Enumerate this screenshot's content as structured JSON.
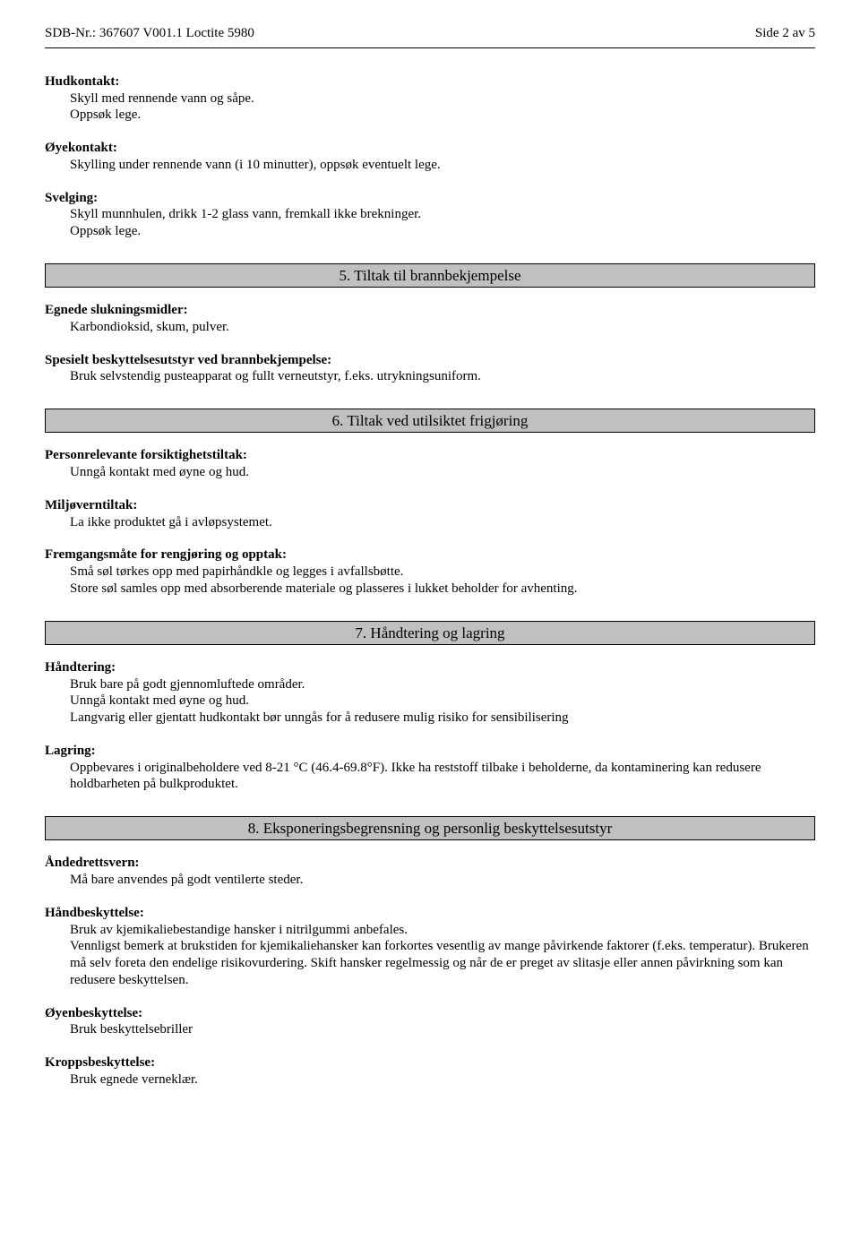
{
  "header": {
    "left": "SDB-Nr.: 367607  V001.1  Loctite 5980",
    "right": "Side 2 av 5"
  },
  "s_hud": {
    "label": "Hudkontakt:",
    "l1": "Skyll med rennende vann og såpe.",
    "l2": "Oppsøk lege."
  },
  "s_oye": {
    "label": "Øyekontakt:",
    "l1": "Skylling under rennende vann (i 10 minutter), oppsøk eventuelt lege."
  },
  "s_svelg": {
    "label": "Svelging:",
    "l1": "Skyll munnhulen, drikk 1-2 glass vann, fremkall ikke brekninger.",
    "l2": "Oppsøk lege."
  },
  "sec5": {
    "title": "5. Tiltak til brannbekjempelse",
    "a": {
      "label": "Egnede slukningsmidler:",
      "l1": "Karbondioksid, skum, pulver."
    },
    "b": {
      "label": "Spesielt beskyttelsesutstyr ved brannbekjempelse:",
      "l1": "Bruk selvstendig pusteapparat og fullt verneutstyr, f.eks. utrykningsuniform."
    }
  },
  "sec6": {
    "title": "6. Tiltak ved utilsiktet frigjøring",
    "a": {
      "label": "Personrelevante forsiktighetstiltak:",
      "l1": "Unngå kontakt med øyne og hud."
    },
    "b": {
      "label": "Miljøverntiltak:",
      "l1": "La ikke produktet gå i avløpsystemet."
    },
    "c": {
      "label": "Fremgangsmåte for rengjøring og opptak:",
      "l1": "Små søl tørkes opp med papirhåndkle og legges i avfallsbøtte.",
      "l2": "Store søl samles opp med absorberende materiale og plasseres i lukket beholder for avhenting."
    }
  },
  "sec7": {
    "title": "7. Håndtering og lagring",
    "a": {
      "label": "Håndtering:",
      "l1": "Bruk bare på godt gjennomluftede områder.",
      "l2": "Unngå kontakt med øyne og hud.",
      "l3": "Langvarig eller gjentatt hudkontakt bør unngås for å redusere mulig risiko for sensibilisering"
    },
    "b": {
      "label": "Lagring:",
      "l1": "Oppbevares i originalbeholdere ved 8-21 °C (46.4-69.8°F). Ikke ha reststoff tilbake i beholderne, da kontaminering kan redusere holdbarheten på bulkproduktet."
    }
  },
  "sec8": {
    "title": "8. Eksponeringsbegrensning og personlig beskyttelsesutstyr",
    "a": {
      "label": "Åndedrettsvern:",
      "l1": "Må bare anvendes på godt ventilerte steder."
    },
    "b": {
      "label": "Håndbeskyttelse:",
      "l1": "Bruk av kjemikaliebestandige hansker i nitrilgummi anbefales.",
      "l2": "Vennligst bemerk at brukstiden for kjemikaliehansker kan forkortes vesentlig av mange påvirkende faktorer (f.eks. temperatur). Brukeren må selv foreta den endelige risikovurdering. Skift hansker regelmessig og når de er preget av slitasje eller annen påvirkning som kan redusere beskyttelsen."
    },
    "c": {
      "label": "Øyenbeskyttelse:",
      "l1": "Bruk beskyttelsebriller"
    },
    "d": {
      "label": "Kroppsbeskyttelse:",
      "l1": "Bruk egnede verneklær."
    }
  }
}
